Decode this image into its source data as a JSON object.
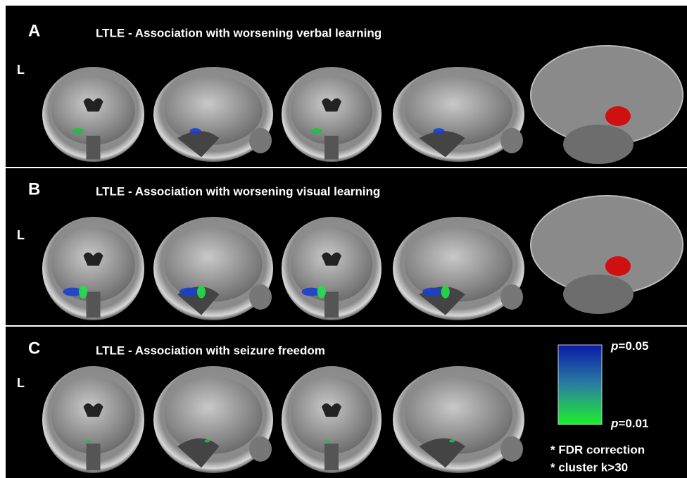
{
  "panels": [
    {
      "letter": "A",
      "side": "L",
      "title": "LTLE - Association with worsening verbal learning"
    },
    {
      "letter": "B",
      "side": "L",
      "title": "LTLE - Association with worsening visual learning"
    },
    {
      "letter": "C",
      "side": "L",
      "title": "LTLE - Association with seizure freedom"
    }
  ],
  "legend": {
    "symbol": "p",
    "top": "=0.05",
    "bottom": "=0.01"
  },
  "notes": [
    "* FDR correction",
    "* cluster k>30"
  ]
}
